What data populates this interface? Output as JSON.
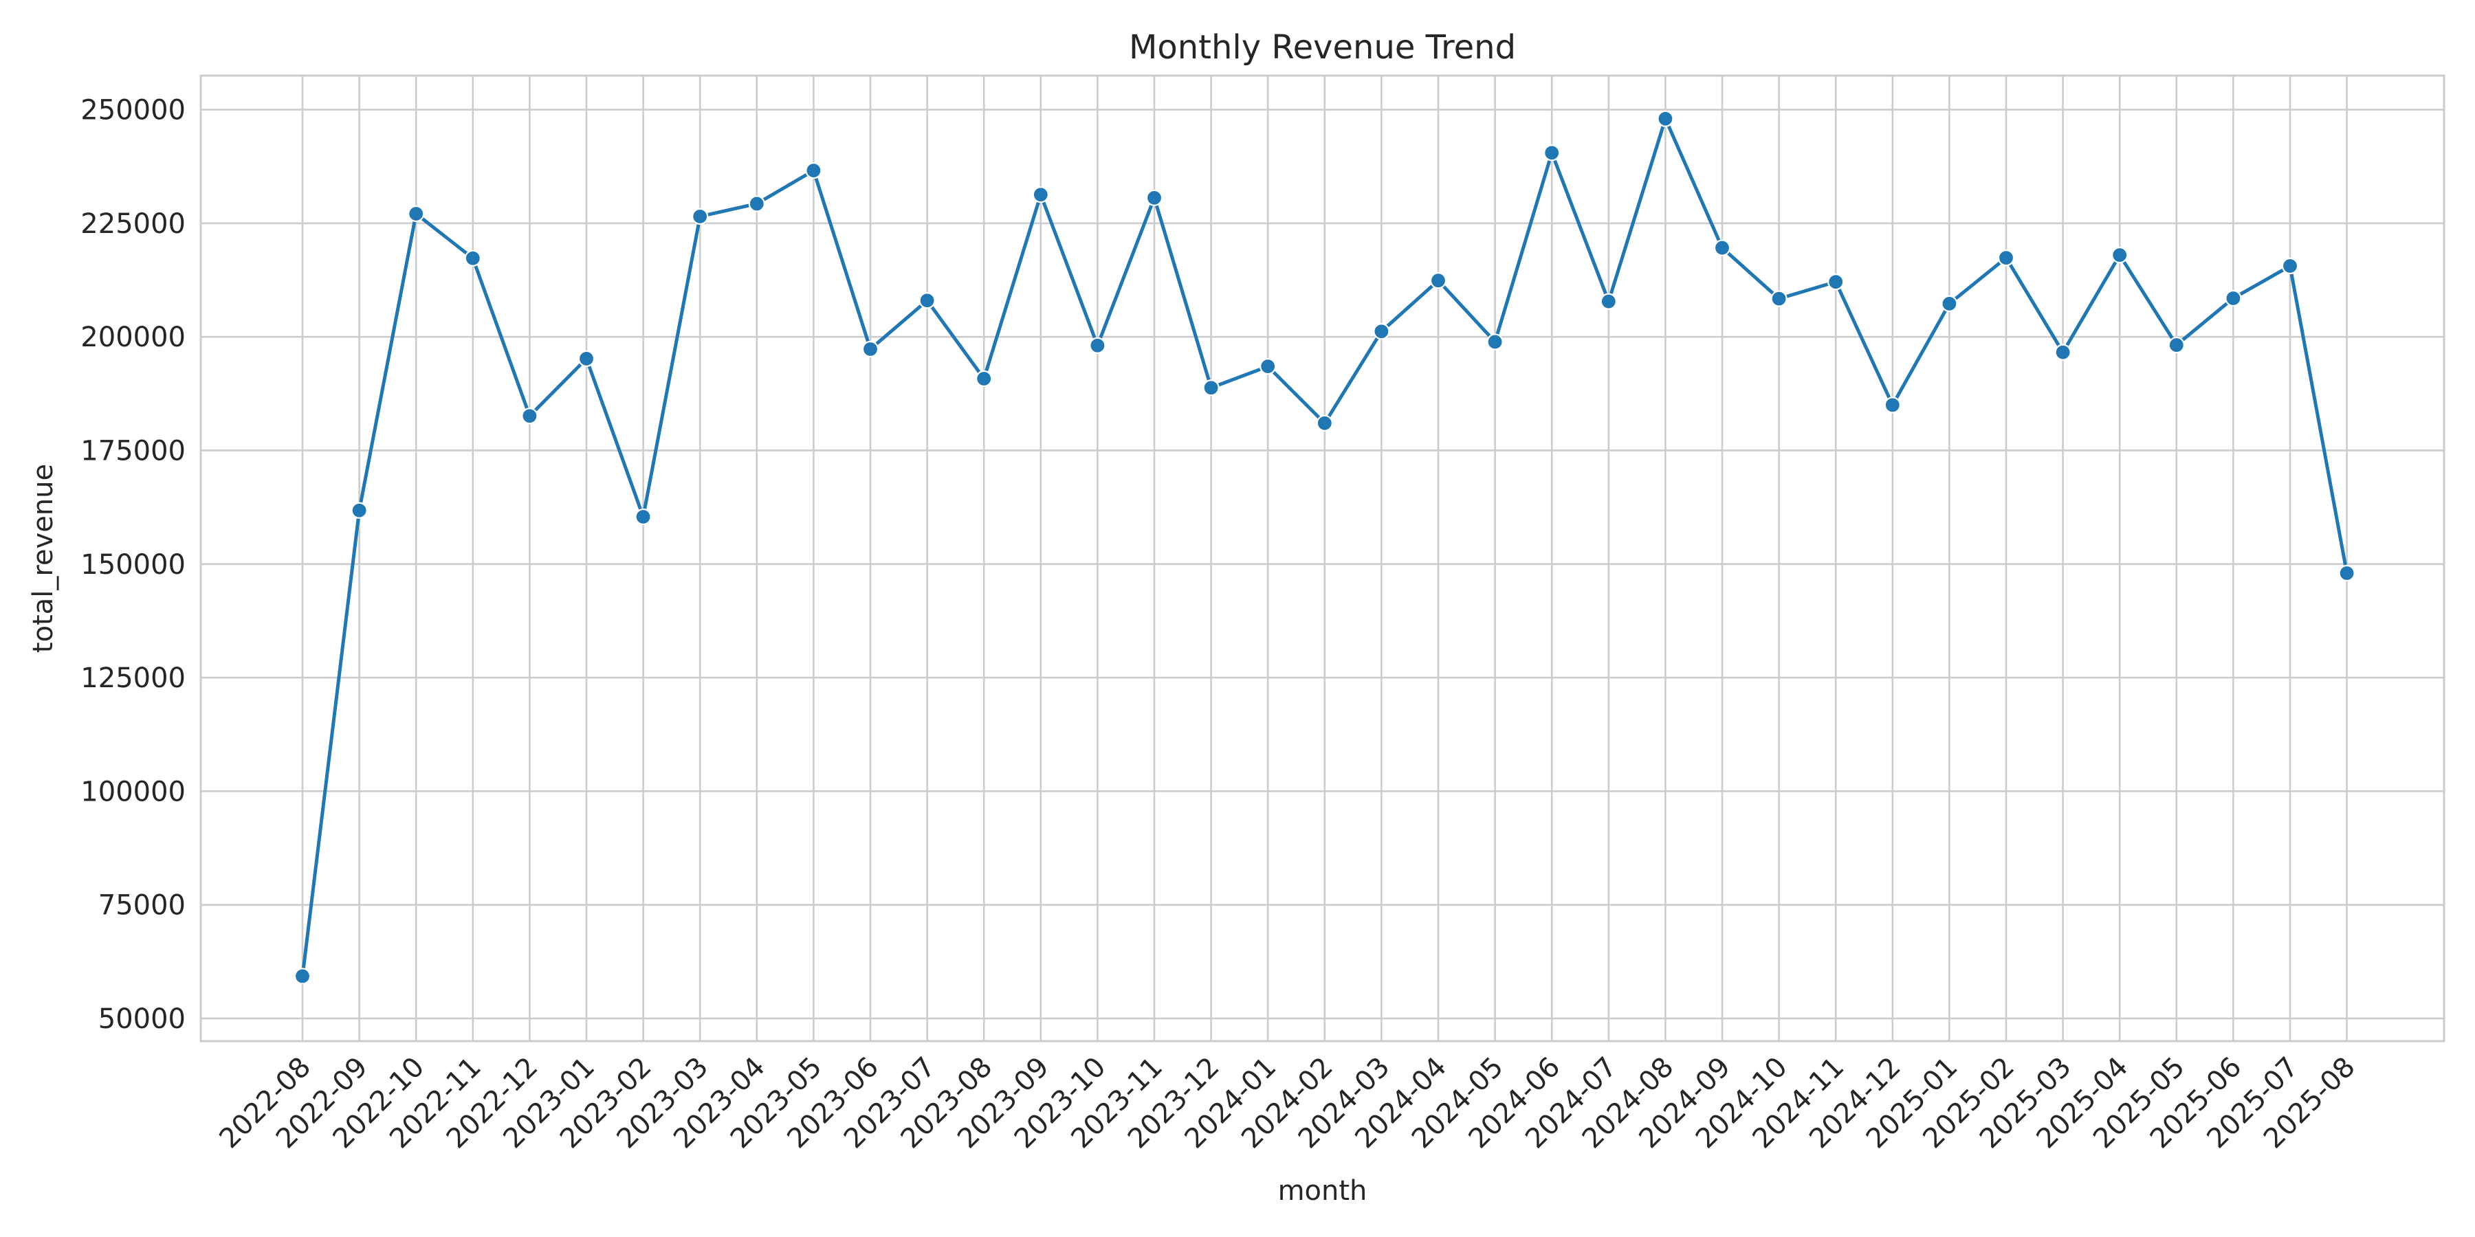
{
  "chart_data": {
    "type": "line",
    "title": "Monthly Revenue Trend",
    "xlabel": "month",
    "ylabel": "total_revenue",
    "grid": true,
    "line_color": "#1f77b4",
    "ylim": [
      45000,
      257500
    ],
    "yticks": [
      50000,
      75000,
      100000,
      125000,
      150000,
      175000,
      200000,
      225000,
      250000
    ],
    "categories": [
      "2022-08",
      "2022-09",
      "2022-10",
      "2022-11",
      "2022-12",
      "2023-01",
      "2023-02",
      "2023-03",
      "2023-04",
      "2023-05",
      "2023-06",
      "2023-07",
      "2023-08",
      "2023-09",
      "2023-10",
      "2023-11",
      "2023-12",
      "2024-01",
      "2024-02",
      "2024-03",
      "2024-04",
      "2024-05",
      "2024-06",
      "2024-07",
      "2024-08",
      "2024-09",
      "2024-10",
      "2024-11",
      "2024-12",
      "2025-01",
      "2025-02",
      "2025-03",
      "2025-04",
      "2025-05",
      "2025-06",
      "2025-07",
      "2025-08"
    ],
    "values": [
      59300,
      161800,
      227100,
      217300,
      182600,
      195200,
      160400,
      226500,
      229300,
      236600,
      197300,
      208000,
      190800,
      231300,
      198100,
      230600,
      188800,
      193500,
      181000,
      201200,
      212400,
      198900,
      240500,
      207800,
      248000,
      219600,
      208400,
      212100,
      185000,
      207300,
      217400,
      196600,
      218000,
      198200,
      208500,
      215600,
      148000
    ]
  }
}
